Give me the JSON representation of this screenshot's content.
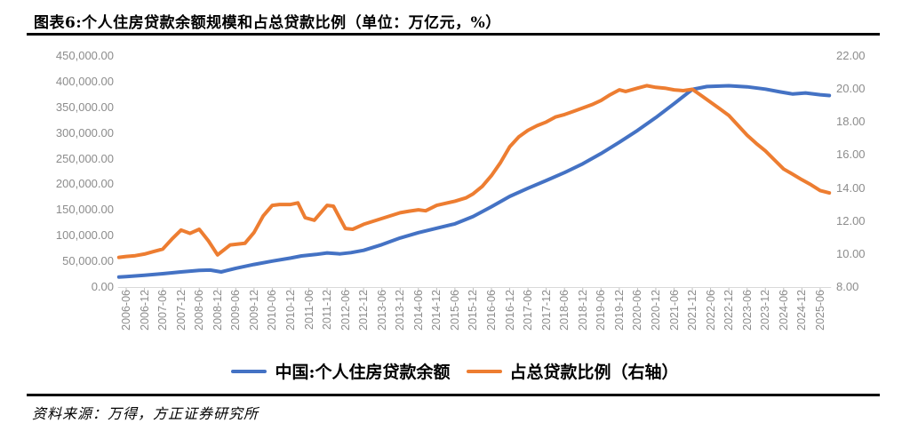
{
  "header": {
    "title": "图表6:个人住房贷款余额规模和占总贷款比例（单位：万亿元，%）"
  },
  "footer": {
    "source": "资料来源：万得，方正证券研究所"
  },
  "colors": {
    "series_blue": "#4472C4",
    "series_orange": "#ED7D31",
    "axis_text": "#8c8c8c",
    "tick_mark": "#bfbfbf",
    "baseline": "#d9d9d9",
    "rule": "#000000"
  },
  "chart_data": {
    "type": "line",
    "title": "图表6:个人住房贷款余额规模和占总贷款比例（单位：万亿元，%）",
    "grid": false,
    "legend_position": "bottom",
    "x_categories": [
      "2006-06",
      "2006-12",
      "2007-06",
      "2007-12",
      "2008-06",
      "2008-12",
      "2009-06",
      "2009-12",
      "2010-06",
      "2010-12",
      "2011-06",
      "2011-12",
      "2012-06",
      "2012-12",
      "2013-06",
      "2013-12",
      "2014-06",
      "2014-12",
      "2015-06",
      "2015-12",
      "2016-06",
      "2016-12",
      "2017-06",
      "2017-12",
      "2018-06",
      "2018-12",
      "2019-06",
      "2019-12",
      "2020-06",
      "2020-12",
      "2021-06",
      "2021-12",
      "2022-06",
      "2022-12",
      "2023-06",
      "2023-12",
      "2024-06",
      "2024-12",
      "2025-06"
    ],
    "y_left": {
      "min": 0,
      "max": 450000,
      "tick_labels": [
        "450,000.00",
        "400,000.00",
        "350,000.00",
        "300,000.00",
        "250,000.00",
        "200,000.00",
        "150,000.00",
        "100,000.00",
        "50,000.00",
        "0.00"
      ],
      "tick_values": [
        450000,
        400000,
        350000,
        300000,
        250000,
        200000,
        150000,
        100000,
        50000,
        0
      ]
    },
    "y_right": {
      "min": 8,
      "max": 22,
      "tick_labels": [
        "22.00",
        "20.00",
        "18.00",
        "16.00",
        "14.00",
        "12.00",
        "10.00",
        "8.00"
      ],
      "tick_values": [
        22,
        20,
        18,
        16,
        14,
        12,
        10,
        8
      ]
    },
    "series": [
      {
        "name": "中国:个人住房贷款余额",
        "axis": "left",
        "color": "#4472C4",
        "points": [
          [
            -0.4,
            19500
          ],
          [
            0,
            20500
          ],
          [
            1,
            23000
          ],
          [
            2,
            26000
          ],
          [
            3,
            29500
          ],
          [
            4,
            32500
          ],
          [
            4.6,
            33000
          ],
          [
            5.2,
            29500
          ],
          [
            6,
            36500
          ],
          [
            7,
            44000
          ],
          [
            8,
            50500
          ],
          [
            9,
            56500
          ],
          [
            9.6,
            60500
          ],
          [
            10.4,
            63500
          ],
          [
            11,
            66500
          ],
          [
            11.7,
            64500
          ],
          [
            12.3,
            67000
          ],
          [
            13,
            71500
          ],
          [
            14,
            82500
          ],
          [
            15,
            95500
          ],
          [
            16,
            106000
          ],
          [
            17,
            114500
          ],
          [
            18,
            123000
          ],
          [
            19,
            137500
          ],
          [
            20,
            156500
          ],
          [
            21,
            176500
          ],
          [
            22,
            192500
          ],
          [
            23,
            207500
          ],
          [
            24,
            223000
          ],
          [
            25,
            240000
          ],
          [
            26,
            260000
          ],
          [
            27,
            282000
          ],
          [
            28,
            305000
          ],
          [
            29,
            330000
          ],
          [
            30,
            357000
          ],
          [
            31,
            385000
          ],
          [
            31.8,
            390500
          ],
          [
            33,
            392000
          ],
          [
            34,
            390000
          ],
          [
            35,
            385500
          ],
          [
            35.8,
            380000
          ],
          [
            36.5,
            376000
          ],
          [
            37.2,
            378000
          ],
          [
            38,
            374500
          ],
          [
            38.5,
            373000
          ]
        ]
      },
      {
        "name": "占总贷款比例（右轴）",
        "axis": "right",
        "color": "#ED7D31",
        "points": [
          [
            -0.4,
            9.8
          ],
          [
            0,
            9.85
          ],
          [
            0.5,
            9.9
          ],
          [
            1,
            10.0
          ],
          [
            1.5,
            10.15
          ],
          [
            2,
            10.3
          ],
          [
            2.5,
            10.9
          ],
          [
            3,
            11.45
          ],
          [
            3.5,
            11.25
          ],
          [
            4,
            11.5
          ],
          [
            4.5,
            10.8
          ],
          [
            5,
            9.95
          ],
          [
            5.7,
            10.55
          ],
          [
            6.5,
            10.65
          ],
          [
            7,
            11.3
          ],
          [
            7.5,
            12.3
          ],
          [
            8,
            12.95
          ],
          [
            8.4,
            13.0
          ],
          [
            9,
            13.0
          ],
          [
            9.4,
            13.1
          ],
          [
            9.8,
            12.2
          ],
          [
            10.3,
            12.05
          ],
          [
            11,
            12.95
          ],
          [
            11.35,
            12.9
          ],
          [
            12,
            11.55
          ],
          [
            12.4,
            11.5
          ],
          [
            13,
            11.8
          ],
          [
            14,
            12.15
          ],
          [
            15,
            12.5
          ],
          [
            15.5,
            12.6
          ],
          [
            16,
            12.68
          ],
          [
            16.4,
            12.62
          ],
          [
            17,
            12.95
          ],
          [
            18,
            13.2
          ],
          [
            18.6,
            13.4
          ],
          [
            19,
            13.65
          ],
          [
            19.5,
            14.1
          ],
          [
            20,
            14.75
          ],
          [
            20.5,
            15.55
          ],
          [
            21,
            16.5
          ],
          [
            21.5,
            17.1
          ],
          [
            22,
            17.5
          ],
          [
            22.5,
            17.78
          ],
          [
            23,
            18.0
          ],
          [
            23.5,
            18.3
          ],
          [
            24,
            18.45
          ],
          [
            24.5,
            18.65
          ],
          [
            25,
            18.85
          ],
          [
            25.5,
            19.05
          ],
          [
            26,
            19.3
          ],
          [
            26.5,
            19.65
          ],
          [
            27,
            19.95
          ],
          [
            27.35,
            19.85
          ],
          [
            28,
            20.05
          ],
          [
            28.5,
            20.2
          ],
          [
            29,
            20.1
          ],
          [
            29.5,
            20.05
          ],
          [
            30,
            19.95
          ],
          [
            30.5,
            19.9
          ],
          [
            31,
            19.98
          ],
          [
            31.5,
            19.6
          ],
          [
            32,
            19.2
          ],
          [
            32.5,
            18.8
          ],
          [
            33,
            18.4
          ],
          [
            33.5,
            17.8
          ],
          [
            34,
            17.2
          ],
          [
            34.5,
            16.7
          ],
          [
            35,
            16.25
          ],
          [
            35.5,
            15.7
          ],
          [
            36,
            15.15
          ],
          [
            36.4,
            14.9
          ],
          [
            37,
            14.5
          ],
          [
            37.5,
            14.2
          ],
          [
            38,
            13.85
          ],
          [
            38.5,
            13.7
          ]
        ]
      }
    ]
  },
  "legend": {
    "items": [
      {
        "label": "中国:个人住房贷款余额",
        "color": "#4472C4"
      },
      {
        "label": "占总贷款比例（右轴）",
        "color": "#ED7D31"
      }
    ]
  }
}
